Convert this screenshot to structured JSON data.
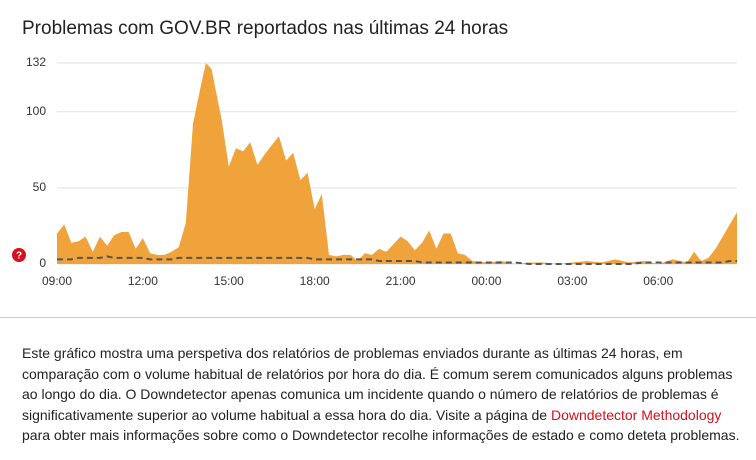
{
  "chart_data": {
    "type": "area",
    "title": "Problemas com GOV.BR reportados nas últimas 24 horas",
    "x": [
      0,
      0.25,
      0.5,
      0.75,
      1,
      1.25,
      1.5,
      1.75,
      2,
      2.25,
      2.5,
      2.75,
      3,
      3.25,
      3.5,
      3.75,
      4,
      4.25,
      4.5,
      4.75,
      5,
      5.2,
      5.4,
      5.5,
      5.75,
      6,
      6.25,
      6.5,
      6.75,
      7,
      7.25,
      7.5,
      7.75,
      8,
      8.25,
      8.5,
      8.75,
      9,
      9.25,
      9.5,
      9.75,
      10,
      10.25,
      10.5,
      10.75,
      11,
      11.25,
      11.5,
      11.75,
      12,
      12.25,
      12.5,
      12.75,
      13,
      13.25,
      13.5,
      13.75,
      14,
      14.25,
      14.5,
      15,
      15.5,
      16,
      16.5,
      17,
      17.5,
      18,
      18.5,
      19,
      19.5,
      20,
      20.5,
      21,
      21.5,
      22,
      22.25,
      22.5,
      22.75,
      23,
      23.25,
      23.5,
      23.75
    ],
    "series": [
      {
        "color": "#f0a33a",
        "values": [
          20,
          26,
          14,
          15,
          18,
          8,
          18,
          12,
          19,
          21,
          21,
          10,
          17,
          7,
          6,
          6,
          8,
          11,
          27,
          92,
          115,
          132,
          128,
          118,
          95,
          64,
          76,
          74,
          80,
          65,
          72,
          78,
          84,
          68,
          73,
          55,
          60,
          36,
          46,
          6,
          5,
          6,
          6,
          2,
          7,
          6,
          10,
          8,
          13,
          18,
          15,
          9,
          14,
          22,
          10,
          20,
          20,
          7,
          6,
          2,
          1,
          2,
          0,
          1,
          1,
          0,
          1,
          2,
          1,
          3,
          1,
          2,
          0,
          3,
          1,
          8,
          2,
          4,
          10,
          18,
          26,
          34
        ]
      },
      {
        "color": "#555555",
        "dashed": true,
        "values": [
          3,
          3,
          3,
          4,
          4,
          4,
          4,
          5,
          4,
          4,
          4,
          4,
          4,
          3,
          3,
          3,
          3,
          4,
          4,
          4,
          4,
          4,
          4,
          4,
          4,
          4,
          4,
          4,
          4,
          4,
          4,
          4,
          4,
          4,
          4,
          4,
          4,
          3,
          3,
          3,
          3,
          3,
          3,
          3,
          3,
          3,
          2,
          2,
          2,
          2,
          2,
          2,
          1,
          1,
          1,
          1,
          1,
          1,
          1,
          1,
          1,
          1,
          1,
          0,
          0,
          0,
          0,
          0,
          0,
          0,
          0,
          1,
          1,
          1,
          1,
          1,
          1,
          1,
          1,
          1,
          2,
          2
        ]
      }
    ],
    "xlim": [
      0,
      23.75
    ],
    "xticks": [
      {
        "value": 0,
        "label": "09:00"
      },
      {
        "value": 3,
        "label": "12:00"
      },
      {
        "value": 6,
        "label": "15:00"
      },
      {
        "value": 9,
        "label": "18:00"
      },
      {
        "value": 12,
        "label": "21:00"
      },
      {
        "value": 15,
        "label": "00:00"
      },
      {
        "value": 18,
        "label": "03:00"
      },
      {
        "value": 21,
        "label": "06:00"
      }
    ],
    "ylim": [
      0,
      132
    ],
    "yticks": [
      0,
      50,
      100,
      132
    ],
    "grid": true
  },
  "description": {
    "text_before": "Este gráfico mostra uma perspetiva dos relatórios de problemas enviados durante as últimas 24 horas, em comparação com o volume habitual de relatórios por hora do dia. É comum serem comunicados alguns problemas ao longo do dia. O Downdetector apenas comunica um incidente quando o número de relatórios de problemas é significativamente superior ao volume habitual a essa hora do dia. Visite a página de ",
    "link": "Downdetector Methodology",
    "text_after": " para obter mais informações sobre como o Downdetector recolhe informações de estado e como deteta problemas."
  }
}
